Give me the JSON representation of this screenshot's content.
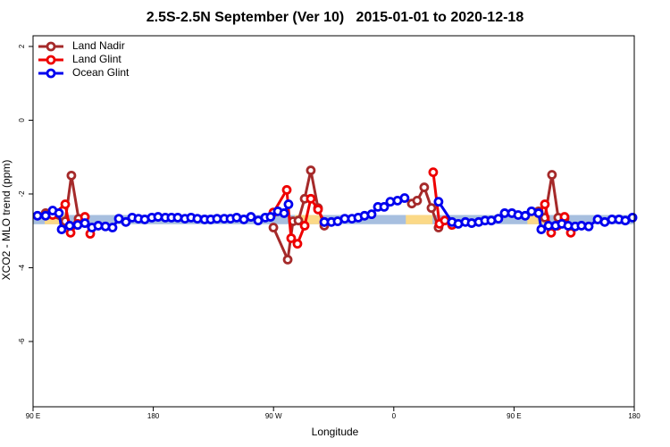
{
  "chart_data": {
    "type": "line",
    "title": "2.5S-2.5N September (Ver 10)   2015-01-01 to 2020-12-18",
    "x_label": "Longitude",
    "y_label": "XCO2 - MLO trend (ppm)",
    "xlim": [
      90,
      540
    ],
    "ylim": [
      -7.77,
      2.29
    ],
    "xticks": [
      {
        "value": 90,
        "label": "90 E"
      },
      {
        "value": 180,
        "label": "180"
      },
      {
        "value": 270,
        "label": "90 W"
      },
      {
        "value": 360,
        "label": "0"
      },
      {
        "value": 450,
        "label": "90 E"
      },
      {
        "value": 540,
        "label": "180"
      }
    ],
    "yticks": [
      2,
      0,
      -2,
      -4,
      -6
    ],
    "legend": "top-left",
    "band": {
      "lower": -2.82,
      "upper": -2.57,
      "color": "#a7bfdf",
      "land_color": "#fbd987",
      "land_ranges": [
        [
          98.7,
          115
        ],
        [
          286,
          306
        ],
        [
          369,
          389
        ],
        [
          460,
          473
        ]
      ]
    },
    "series": [
      {
        "name": "Land Nadir",
        "color": "#a52a2a",
        "x": [
          99.4,
          114.1,
          118.7,
          124.1,
          null,
          269.9,
          280.6,
          284.6,
          288.6,
          293.3,
          297.9,
          303.3,
          308.0,
          null,
          373.5,
          377.5,
          382.8,
          388.2,
          393.5,
          null,
          468.4,
          473.1,
          478.4,
          483.1,
          487.8
        ],
        "values": [
          -2.52,
          -2.74,
          -1.5,
          -2.67,
          null,
          -2.91,
          -3.78,
          -2.74,
          -2.72,
          -2.13,
          -1.36,
          -2.38,
          -2.86,
          null,
          -2.26,
          -2.18,
          -1.82,
          -2.38,
          -2.91,
          null,
          -2.47,
          -2.64,
          -1.48,
          -2.64,
          -2.67
        ]
      },
      {
        "name": "Land Glint",
        "color": "#ee0000",
        "x": [
          104.7,
          114.1,
          118.1,
          123.4,
          128.8,
          132.8,
          null,
          269.9,
          279.9,
          283.2,
          287.9,
          293.3,
          297.9,
          303.3,
          308.0,
          null,
          389.5,
          394.2,
          398.2,
          403.6,
          null,
          468.4,
          473.1,
          477.8,
          482.5,
          487.8,
          492.5
        ],
        "values": [
          -2.57,
          -2.28,
          -3.05,
          -2.81,
          -2.62,
          -3.08,
          null,
          -2.5,
          -1.89,
          -3.2,
          -3.35,
          -2.86,
          -2.13,
          -2.42,
          -2.76,
          null,
          -1.41,
          -2.81,
          -2.72,
          -2.84,
          null,
          -2.52,
          -2.28,
          -3.05,
          -2.86,
          -2.62,
          -3.05
        ]
      },
      {
        "name": "Ocean Glint",
        "color": "#0000ee",
        "x": [
          93.3,
          99.4,
          104.7,
          109.4,
          111.4,
          117.4,
          123.4,
          128.8,
          134.1,
          138.8,
          144.2,
          149.5,
          154.2,
          159.5,
          164.2,
          168.9,
          173.6,
          178.9,
          183.6,
          189.0,
          193.6,
          198.3,
          203.7,
          208.3,
          213.0,
          218.4,
          223.0,
          227.7,
          233.1,
          237.8,
          242.4,
          247.8,
          253.1,
          258.5,
          263.8,
          267.8,
          273.2,
          277.9,
          281.2,
          null,
          308.0,
          313.3,
          318.0,
          323.3,
          328.7,
          333.4,
          338.1,
          343.4,
          348.1,
          352.8,
          357.4,
          362.8,
          368.1,
          null,
          393.5,
          403.6,
          408.3,
          413.6,
          418.3,
          423.6,
          428.3,
          433.0,
          438.3,
          443.0,
          448.4,
          453.1,
          458.4,
          463.1,
          468.4,
          470.4,
          475.8,
          481.1,
          485.8,
          490.5,
          495.8,
          500.5,
          505.9,
          512.6,
          517.9,
          523.3,
          528.6,
          533.3,
          538.7
        ],
        "values": [
          -2.59,
          -2.59,
          -2.45,
          -2.52,
          -2.96,
          -2.86,
          -2.84,
          -2.79,
          -2.91,
          -2.86,
          -2.88,
          -2.91,
          -2.67,
          -2.76,
          -2.64,
          -2.67,
          -2.69,
          -2.64,
          -2.62,
          -2.64,
          -2.64,
          -2.64,
          -2.67,
          -2.64,
          -2.67,
          -2.69,
          -2.69,
          -2.67,
          -2.67,
          -2.67,
          -2.64,
          -2.69,
          -2.62,
          -2.72,
          -2.64,
          -2.62,
          -2.47,
          -2.52,
          -2.28,
          null,
          -2.76,
          -2.76,
          -2.74,
          -2.67,
          -2.67,
          -2.64,
          -2.59,
          -2.55,
          -2.35,
          -2.35,
          -2.21,
          -2.18,
          -2.11,
          null,
          -2.21,
          -2.76,
          -2.81,
          -2.76,
          -2.79,
          -2.76,
          -2.72,
          -2.72,
          -2.67,
          -2.52,
          -2.52,
          -2.57,
          -2.59,
          -2.47,
          -2.52,
          -2.96,
          -2.86,
          -2.86,
          -2.81,
          -2.86,
          -2.88,
          -2.86,
          -2.88,
          -2.69,
          -2.76,
          -2.69,
          -2.69,
          -2.72,
          -2.64
        ]
      }
    ]
  }
}
